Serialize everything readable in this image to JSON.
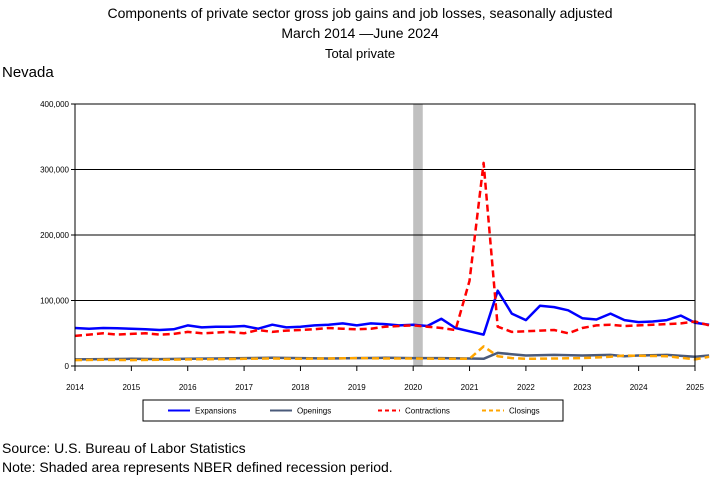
{
  "titles": {
    "line1": "Components of private sector gross job gains and job losses, seasonally adjusted",
    "line2": "March 2014 —June 2024",
    "line3": "Total private"
  },
  "region": "Nevada",
  "footer": {
    "source": "Source: U.S. Bureau of Labor Statistics",
    "note": "Note: Shaded area represents NBER defined recession period."
  },
  "chart_data": {
    "type": "line",
    "title": "",
    "xlabel": "",
    "ylabel": "",
    "xlim": [
      2014,
      2025
    ],
    "ylim": [
      0,
      400000
    ],
    "grid": true,
    "legend_position": "bottom",
    "x_ticks": [
      "2014",
      "2015",
      "2016",
      "2017",
      "2018",
      "2019",
      "2020",
      "2021",
      "2022",
      "2023",
      "2024",
      "2025"
    ],
    "y_ticks": [
      "0",
      "100,000",
      "200,000",
      "300,000",
      "400,000"
    ],
    "recession": {
      "start": 2020.0,
      "end": 2020.17,
      "color": "#c0c0c0"
    },
    "series": [
      {
        "name": "Expansions",
        "color": "#0000ff",
        "dash": "solid",
        "width": 2.5,
        "points": [
          [
            2014.0,
            58000
          ],
          [
            2014.25,
            57000
          ],
          [
            2014.5,
            58000
          ],
          [
            2014.75,
            57500
          ],
          [
            2015.0,
            57000
          ],
          [
            2015.25,
            56000
          ],
          [
            2015.5,
            55000
          ],
          [
            2015.75,
            56000
          ],
          [
            2016.0,
            62000
          ],
          [
            2016.25,
            59000
          ],
          [
            2016.5,
            60000
          ],
          [
            2016.75,
            60000
          ],
          [
            2017.0,
            61000
          ],
          [
            2017.25,
            57000
          ],
          [
            2017.5,
            63000
          ],
          [
            2017.75,
            59000
          ],
          [
            2018.0,
            60000
          ],
          [
            2018.25,
            62000
          ],
          [
            2018.5,
            63000
          ],
          [
            2018.75,
            65000
          ],
          [
            2019.0,
            62000
          ],
          [
            2019.25,
            65000
          ],
          [
            2019.5,
            64000
          ],
          [
            2019.75,
            62000
          ],
          [
            2020.0,
            63000
          ],
          [
            2020.25,
            61000
          ],
          [
            2020.5,
            72000
          ],
          [
            2020.75,
            58000
          ],
          [
            2021.0,
            53000
          ],
          [
            2021.25,
            48000
          ],
          [
            2021.5,
            115000
          ],
          [
            2021.75,
            80000
          ],
          [
            2022.0,
            70000
          ],
          [
            2022.25,
            92000
          ],
          [
            2022.5,
            90000
          ],
          [
            2022.75,
            85000
          ],
          [
            2023.0,
            73000
          ],
          [
            2023.25,
            71000
          ],
          [
            2023.5,
            80000
          ],
          [
            2023.75,
            70000
          ],
          [
            2024.0,
            67000
          ],
          [
            2024.25,
            68000
          ],
          [
            2024.5,
            70000
          ],
          [
            2024.75,
            77000
          ],
          [
            2025.0,
            66000
          ],
          [
            2025.25,
            63000
          ]
        ]
      },
      {
        "name": "Openings",
        "color": "#4a5a7a",
        "dash": "solid",
        "width": 2.5,
        "points": [
          [
            2014.0,
            10000
          ],
          [
            2014.5,
            10500
          ],
          [
            2015.0,
            11000
          ],
          [
            2015.5,
            10500
          ],
          [
            2016.0,
            11000
          ],
          [
            2016.5,
            11500
          ],
          [
            2017.0,
            12000
          ],
          [
            2017.5,
            12500
          ],
          [
            2018.0,
            12000
          ],
          [
            2018.5,
            11500
          ],
          [
            2019.0,
            12000
          ],
          [
            2019.5,
            12500
          ],
          [
            2020.0,
            12000
          ],
          [
            2020.5,
            12000
          ],
          [
            2021.0,
            11500
          ],
          [
            2021.25,
            11000
          ],
          [
            2021.5,
            20000
          ],
          [
            2021.75,
            18000
          ],
          [
            2022.0,
            16000
          ],
          [
            2022.5,
            17000
          ],
          [
            2023.0,
            16000
          ],
          [
            2023.5,
            17000
          ],
          [
            2023.75,
            15000
          ],
          [
            2024.0,
            16000
          ],
          [
            2024.5,
            17000
          ],
          [
            2025.0,
            14000
          ],
          [
            2025.25,
            16000
          ]
        ]
      },
      {
        "name": "Contractions",
        "color": "#ff0000",
        "dash": "dashed",
        "width": 2.5,
        "points": [
          [
            2014.0,
            46000
          ],
          [
            2014.25,
            48000
          ],
          [
            2014.5,
            50000
          ],
          [
            2014.75,
            48000
          ],
          [
            2015.0,
            49000
          ],
          [
            2015.25,
            50000
          ],
          [
            2015.5,
            48000
          ],
          [
            2015.75,
            49000
          ],
          [
            2016.0,
            52000
          ],
          [
            2016.25,
            50000
          ],
          [
            2016.5,
            51000
          ],
          [
            2016.75,
            52000
          ],
          [
            2017.0,
            50000
          ],
          [
            2017.25,
            55000
          ],
          [
            2017.5,
            52000
          ],
          [
            2017.75,
            54000
          ],
          [
            2018.0,
            55000
          ],
          [
            2018.25,
            56000
          ],
          [
            2018.5,
            58000
          ],
          [
            2018.75,
            57000
          ],
          [
            2019.0,
            56000
          ],
          [
            2019.25,
            57000
          ],
          [
            2019.5,
            60000
          ],
          [
            2019.75,
            61000
          ],
          [
            2020.0,
            62000
          ],
          [
            2020.25,
            60000
          ],
          [
            2020.5,
            58000
          ],
          [
            2020.75,
            55000
          ],
          [
            2021.0,
            130000
          ],
          [
            2021.25,
            310000
          ],
          [
            2021.5,
            60000
          ],
          [
            2021.75,
            52000
          ],
          [
            2022.0,
            53000
          ],
          [
            2022.25,
            54000
          ],
          [
            2022.5,
            55000
          ],
          [
            2022.75,
            50000
          ],
          [
            2023.0,
            58000
          ],
          [
            2023.25,
            62000
          ],
          [
            2023.5,
            63000
          ],
          [
            2023.75,
            61000
          ],
          [
            2024.0,
            62000
          ],
          [
            2024.25,
            63000
          ],
          [
            2024.5,
            64000
          ],
          [
            2024.75,
            65000
          ],
          [
            2025.0,
            68000
          ],
          [
            2025.25,
            62000
          ]
        ]
      },
      {
        "name": "Closings",
        "color": "#ffa500",
        "dash": "dashed",
        "width": 2.5,
        "points": [
          [
            2014.0,
            9000
          ],
          [
            2014.5,
            9500
          ],
          [
            2015.0,
            9000
          ],
          [
            2015.5,
            9500
          ],
          [
            2016.0,
            10000
          ],
          [
            2016.5,
            10500
          ],
          [
            2017.0,
            11000
          ],
          [
            2017.5,
            11500
          ],
          [
            2018.0,
            11000
          ],
          [
            2018.5,
            11500
          ],
          [
            2019.0,
            12000
          ],
          [
            2019.5,
            11500
          ],
          [
            2020.0,
            11500
          ],
          [
            2020.5,
            11000
          ],
          [
            2021.0,
            11000
          ],
          [
            2021.25,
            30000
          ],
          [
            2021.5,
            15000
          ],
          [
            2021.75,
            12000
          ],
          [
            2022.0,
            11000
          ],
          [
            2022.5,
            11500
          ],
          [
            2023.0,
            12000
          ],
          [
            2023.5,
            14000
          ],
          [
            2023.75,
            16000
          ],
          [
            2024.0,
            15500
          ],
          [
            2024.5,
            15000
          ],
          [
            2025.0,
            10000
          ],
          [
            2025.25,
            14000
          ]
        ]
      }
    ]
  }
}
